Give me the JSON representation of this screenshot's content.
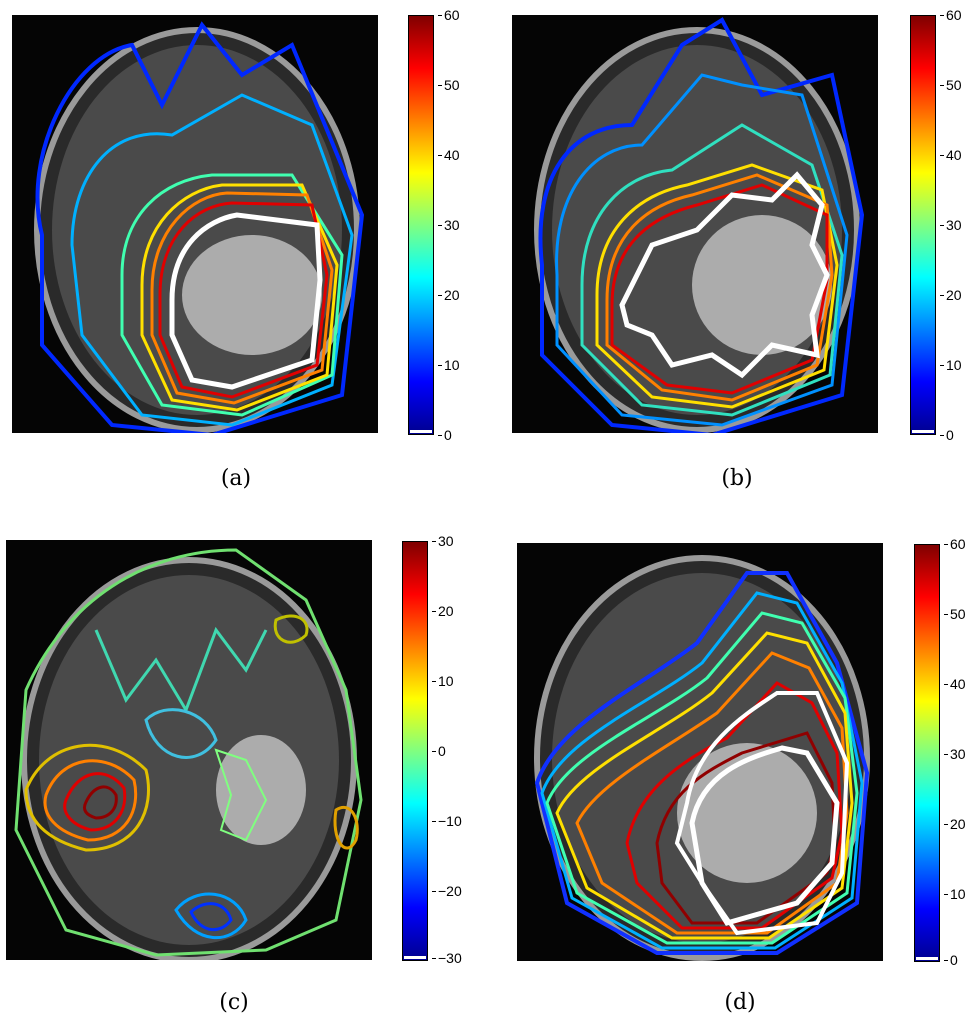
{
  "panels": [
    {
      "id": "a",
      "caption": "(a)",
      "colorbar_ticks": [
        "60",
        "50",
        "40",
        "30",
        "20",
        "10",
        "0"
      ]
    },
    {
      "id": "b",
      "caption": "(b)",
      "colorbar_ticks": [
        "60",
        "50",
        "40",
        "30",
        "20",
        "10",
        "0"
      ]
    },
    {
      "id": "c",
      "caption": "(c)",
      "colorbar_ticks": [
        "30",
        "20",
        "10",
        "0",
        "−10",
        "−20",
        "−30"
      ]
    },
    {
      "id": "d",
      "caption": "(d)",
      "colorbar_ticks": [
        "60",
        "50",
        "40",
        "30",
        "20",
        "10",
        "0"
      ]
    }
  ],
  "colormap": [
    "#00008f",
    "#0000ff",
    "#0080ff",
    "#00ffff",
    "#80ff80",
    "#ffff00",
    "#ff8000",
    "#ff0000",
    "#800000"
  ]
}
